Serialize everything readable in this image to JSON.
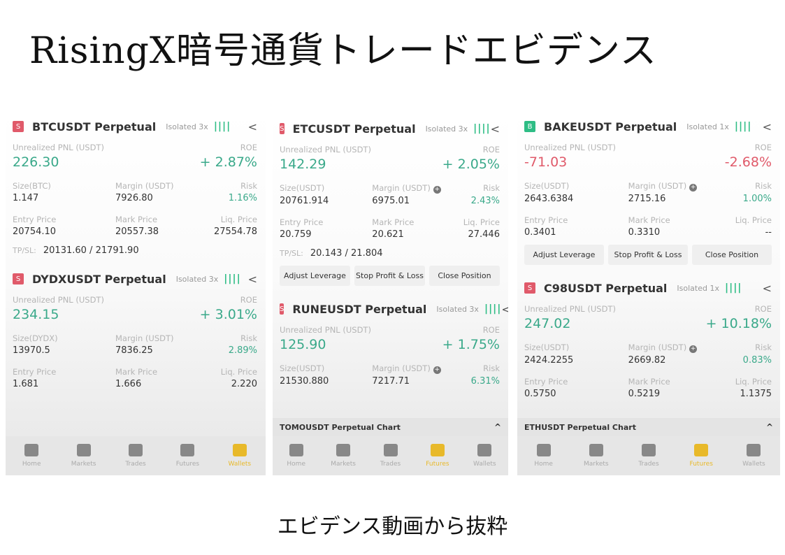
{
  "title": "RisingX暗号通貨トレードエビデンス",
  "caption": "エビデンス動画から抜粋",
  "colors": {
    "profit": "#3aa98a",
    "loss": "#e05a6a",
    "sell_badge": "#e05a6a",
    "buy_badge": "#2ebd85",
    "active_tab": "#e8b92a"
  },
  "labels": {
    "pnl": "Unrealized PNL (USDT)",
    "roe": "ROE",
    "margin": "Margin (USDT)",
    "risk": "Risk",
    "entry": "Entry Price",
    "mark": "Mark Price",
    "liq": "Liq. Price",
    "tpsl": "TP/SL:"
  },
  "panels": [
    {
      "cards": [
        {
          "side": "S",
          "symbol": "BTCUSDT Perpetual",
          "mode": "Isolated 3x",
          "pnl": "226.30",
          "roe": "+ 2.87%",
          "size_label": "Size(BTC)",
          "size": "1.147",
          "margin": "7926.80",
          "margin_plus": false,
          "risk": "1.16%",
          "entry": "20754.10",
          "mark": "20557.38",
          "liq": "27554.78",
          "tpsl": "20131.60 / 21791.90",
          "buttons": []
        },
        {
          "side": "S",
          "symbol": "DYDXUSDT Perpetual",
          "mode": "Isolated 3x",
          "pnl": "234.15",
          "roe": "+ 3.01%",
          "size_label": "Size(DYDX)",
          "size": "13970.5",
          "margin": "7836.25",
          "margin_plus": false,
          "risk": "2.89%",
          "entry": "1.681",
          "mark": "1.666",
          "liq": "2.220",
          "buttons": []
        }
      ],
      "chart_bar": null,
      "active_tab": 4
    },
    {
      "cards": [
        {
          "side": "S",
          "symbol": "ETCUSDT Perpetual",
          "mode": "Isolated 3x",
          "pnl": "142.29",
          "roe": "+ 2.05%",
          "size_label": "Size(USDT)",
          "size": "20761.914",
          "margin": "6975.01",
          "margin_plus": true,
          "risk": "2.43%",
          "entry": "20.759",
          "mark": "20.621",
          "liq": "27.446",
          "tpsl": "20.143 / 21.804",
          "buttons": [
            "Adjust Leverage",
            "Stop Profit & Loss",
            "Close Position"
          ]
        },
        {
          "side": "S",
          "symbol": "RUNEUSDT Perpetual",
          "mode": "Isolated 3x",
          "pnl": "125.90",
          "roe": "+ 1.75%",
          "size_label": "Size(USDT)",
          "size": "21530.880",
          "margin": "7217.71",
          "margin_plus": true,
          "risk": "6.31%",
          "buttons": []
        }
      ],
      "chart_bar": "TOMOUSDT Perpetual  Chart",
      "active_tab": 3
    },
    {
      "cards": [
        {
          "side": "B",
          "symbol": "BAKEUSDT Perpetual",
          "mode": "Isolated 1x",
          "pnl": "-71.03",
          "roe": "-2.68%",
          "negative": true,
          "size_label": "Size(USDT)",
          "size": "2643.6384",
          "margin": "2715.16",
          "margin_plus": true,
          "risk": "1.00%",
          "entry": "0.3401",
          "mark": "0.3310",
          "liq": "--",
          "buttons": [
            "Adjust Leverage",
            "Stop Profit & Loss",
            "Close Position"
          ]
        },
        {
          "side": "S",
          "symbol": "C98USDT Perpetual",
          "mode": "Isolated 1x",
          "pnl": "247.02",
          "roe": "+ 10.18%",
          "size_label": "Size(USDT)",
          "size": "2424.2255",
          "margin": "2669.82",
          "margin_plus": true,
          "risk": "0.83%",
          "entry": "0.5750",
          "mark": "0.5219",
          "liq": "1.1375",
          "buttons": []
        }
      ],
      "chart_bar": "ETHUSDT Perpetual  Chart",
      "active_tab": 3
    }
  ],
  "tabs": [
    "Home",
    "Markets",
    "Trades",
    "Futures",
    "Wallets"
  ]
}
